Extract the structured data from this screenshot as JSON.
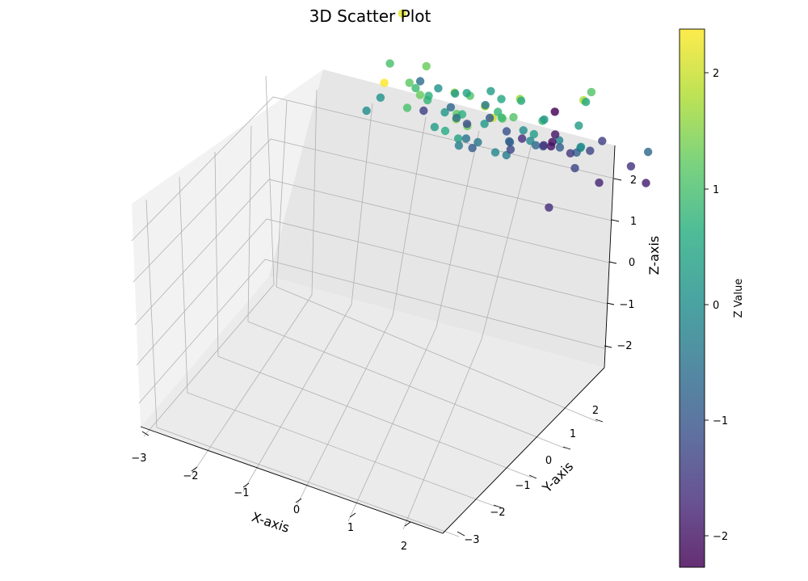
{
  "chart_data": {
    "type": "scatter",
    "projection": "3d",
    "title": "3D Scatter Plot",
    "xlabel": "X-axis",
    "ylabel": "Y-axis",
    "zlabel": "Z-axis",
    "xticks": [
      "−3",
      "−2",
      "−1",
      "0",
      "1",
      "2"
    ],
    "yticks": [
      "−3",
      "−2",
      "−1",
      "0",
      "1",
      "2"
    ],
    "zticks": [
      "−2",
      "−1",
      "0",
      "1",
      "2"
    ],
    "xlim": [
      -3.1,
      2.6
    ],
    "ylim": [
      -3.3,
      2.8
    ],
    "zlim": [
      -2.6,
      2.6
    ],
    "grid": true,
    "colormap": "viridis",
    "colorbar": {
      "label": "Z Value",
      "ticks": [
        "−2",
        "−1",
        "0",
        "1",
        "2"
      ],
      "range": [
        -2.3,
        2.4
      ]
    },
    "points": [
      {
        "x": -1.2,
        "y": 1.9,
        "z": 2.4
      },
      {
        "x": 0.8,
        "y": 1.6,
        "z": 2.0
      },
      {
        "x": -2.0,
        "y": 0.0,
        "z": 2.2
      },
      {
        "x": 1.9,
        "y": 0.4,
        "z": 1.8
      },
      {
        "x": 0.4,
        "y": 1.2,
        "z": 1.8
      },
      {
        "x": -0.4,
        "y": 0.9,
        "z": 1.6
      },
      {
        "x": 0.0,
        "y": 1.5,
        "z": 1.6
      },
      {
        "x": 0.1,
        "y": 1.3,
        "z": 1.3
      },
      {
        "x": -1.1,
        "y": 0.9,
        "z": 1.3
      },
      {
        "x": -1.4,
        "y": 0.2,
        "z": 1.3
      },
      {
        "x": -1.5,
        "y": 0.6,
        "z": 1.2
      },
      {
        "x": -1.3,
        "y": 1.0,
        "z": 1.0
      },
      {
        "x": -0.4,
        "y": 0.4,
        "z": 1.1
      },
      {
        "x": 0.6,
        "y": 0.6,
        "z": 1.1
      },
      {
        "x": 0.5,
        "y": 0.8,
        "z": 1.2
      },
      {
        "x": 0.3,
        "y": 0.5,
        "z": 0.9
      },
      {
        "x": 0.1,
        "y": 0.3,
        "z": 0.8
      },
      {
        "x": -0.5,
        "y": 0.5,
        "z": 0.7
      },
      {
        "x": -2.2,
        "y": 0.1,
        "z": 1.0
      },
      {
        "x": 1.5,
        "y": -0.5,
        "z": 1.1
      },
      {
        "x": 0.2,
        "y": -0.3,
        "z": 0.6
      },
      {
        "x": 1.0,
        "y": 0.3,
        "z": 0.9
      },
      {
        "x": -0.6,
        "y": 0.9,
        "z": 0.6
      },
      {
        "x": -1.5,
        "y": 0.4,
        "z": 0.9
      },
      {
        "x": -1.2,
        "y": 0.5,
        "z": 0.8
      },
      {
        "x": -1.3,
        "y": 0.3,
        "z": 0.7
      },
      {
        "x": -0.2,
        "y": -0.3,
        "z": 0.5
      },
      {
        "x": 1.2,
        "y": -0.8,
        "z": 0.5
      },
      {
        "x": 1.7,
        "y": 0.2,
        "z": 0.4
      },
      {
        "x": -0.9,
        "y": -0.3,
        "z": 0.4
      },
      {
        "x": 0.6,
        "y": -0.4,
        "z": 0.2
      },
      {
        "x": -0.6,
        "y": -0.6,
        "z": 0.3
      },
      {
        "x": -1.2,
        "y": -0.4,
        "z": 0.2
      },
      {
        "x": -1.6,
        "y": -0.5,
        "z": 0.1
      },
      {
        "x": -2.4,
        "y": 0.1,
        "z": 0.1
      },
      {
        "x": -2.5,
        "y": 0.4,
        "z": 0.0
      },
      {
        "x": -0.4,
        "y": 0.8,
        "z": 0.4
      },
      {
        "x": -1.0,
        "y": 0.6,
        "z": 0.3
      },
      {
        "x": -1.1,
        "y": 0.1,
        "z": 0.2
      },
      {
        "x": 0.7,
        "y": 0.1,
        "z": 0.3
      },
      {
        "x": 0.1,
        "y": 0.4,
        "z": -0.1
      },
      {
        "x": 0.5,
        "y": -0.1,
        "z": -0.1
      },
      {
        "x": 0.9,
        "y": -0.4,
        "z": -0.2
      },
      {
        "x": 0.2,
        "y": 0.2,
        "z": -0.3
      },
      {
        "x": -0.5,
        "y": 0.0,
        "z": -0.4
      },
      {
        "x": -0.8,
        "y": -0.1,
        "z": -0.5
      },
      {
        "x": -1.3,
        "y": -0.6,
        "z": -0.6
      },
      {
        "x": -1.6,
        "y": -0.9,
        "z": -0.7
      },
      {
        "x": -2.4,
        "y": -1.2,
        "z": -0.6
      },
      {
        "x": 2.2,
        "y": -1.2,
        "z": -0.7
      },
      {
        "x": 0.6,
        "y": -0.9,
        "z": -0.9
      },
      {
        "x": -0.3,
        "y": -0.7,
        "z": -0.9
      },
      {
        "x": 0.3,
        "y": -0.6,
        "z": -0.7
      },
      {
        "x": -0.6,
        "y": -1.1,
        "z": -1.1
      },
      {
        "x": 0.2,
        "y": -1.0,
        "z": -1.1
      },
      {
        "x": 0.9,
        "y": -1.4,
        "z": -1.3
      },
      {
        "x": -0.8,
        "y": -0.3,
        "z": -0.9
      },
      {
        "x": -1.0,
        "y": -1.2,
        "z": -1.0
      },
      {
        "x": -1.4,
        "y": -1.1,
        "z": -1.2
      },
      {
        "x": 0.9,
        "y": -1.8,
        "z": -1.4
      },
      {
        "x": 1.6,
        "y": -1.6,
        "z": -1.6
      },
      {
        "x": 0.5,
        "y": -1.4,
        "z": -1.5
      },
      {
        "x": -0.1,
        "y": -1.5,
        "z": -1.6
      },
      {
        "x": -2.4,
        "y": -1.3,
        "z": -1.4
      },
      {
        "x": -0.2,
        "y": -1.9,
        "z": -2.0
      },
      {
        "x": -0.6,
        "y": -1.6,
        "z": -1.7
      },
      {
        "x": -0.3,
        "y": -2.1,
        "z": -2.1
      },
      {
        "x": -0.3,
        "y": -2.2,
        "z": -2.0
      },
      {
        "x": 1.9,
        "y": -1.6,
        "z": -1.9
      },
      {
        "x": 1.2,
        "y": -1.2,
        "z": -1.8
      },
      {
        "x": 0.8,
        "y": -0.2,
        "z": -1.7
      },
      {
        "x": 0.9,
        "y": -0.9,
        "z": -1.3
      },
      {
        "x": -0.4,
        "y": -0.9,
        "z": -1.3
      },
      {
        "x": -0.8,
        "y": -3.0,
        "z": -2.3
      },
      {
        "x": 1.4,
        "y": -0.3,
        "z": -0.1
      },
      {
        "x": 0.3,
        "y": -0.2,
        "z": 0.0
      },
      {
        "x": -0.3,
        "y": 0.1,
        "z": 0.2
      },
      {
        "x": -0.7,
        "y": 0.3,
        "z": -0.3
      },
      {
        "x": 1.0,
        "y": -0.8,
        "z": -0.8
      },
      {
        "x": -0.1,
        "y": -0.4,
        "z": -0.6
      },
      {
        "x": -0.9,
        "y": -0.9,
        "z": -0.4
      },
      {
        "x": 1.3,
        "y": -0.4,
        "z": 0.3
      },
      {
        "x": 0.8,
        "y": 0.7,
        "z": 1.7
      },
      {
        "x": -0.3,
        "y": 1.0,
        "z": 1.2
      }
    ]
  }
}
